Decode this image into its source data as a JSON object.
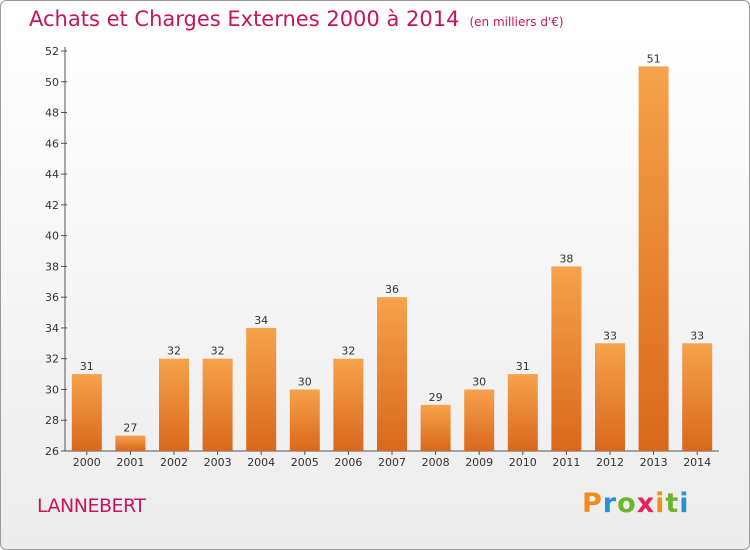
{
  "header": {
    "title": "Achats et Charges Externes 2000 à 2014",
    "unit": "(en milliers d'€)"
  },
  "footer": {
    "commune": "LANNEBERT",
    "logo_text": "Proxiti"
  },
  "colors": {
    "title": "#c8155a",
    "bar_light": "#f6a24c",
    "bar_dark": "#d9681c",
    "logo_letters": [
      "#f28c1e",
      "#2a8fd6",
      "#6fb52c",
      "#e2235c",
      "#f28c1e",
      "#6fb52c",
      "#2a8fd6"
    ]
  },
  "chart_data": {
    "type": "bar",
    "title": "Achats et Charges Externes 2000 à 2014",
    "subtitle": "(en milliers d'€)",
    "xlabel": "",
    "ylabel": "",
    "categories": [
      "2000",
      "2001",
      "2002",
      "2003",
      "2004",
      "2005",
      "2006",
      "2007",
      "2008",
      "2009",
      "2010",
      "2011",
      "2012",
      "2013",
      "2014"
    ],
    "values": [
      31,
      27,
      32,
      32,
      34,
      30,
      32,
      36,
      29,
      30,
      31,
      38,
      33,
      51,
      33
    ],
    "ylim": [
      26,
      52
    ],
    "yticks": [
      26,
      28,
      30,
      32,
      34,
      36,
      38,
      40,
      42,
      44,
      46,
      48,
      50,
      52
    ],
    "grid": false,
    "legend": "none",
    "data_labels": true
  }
}
